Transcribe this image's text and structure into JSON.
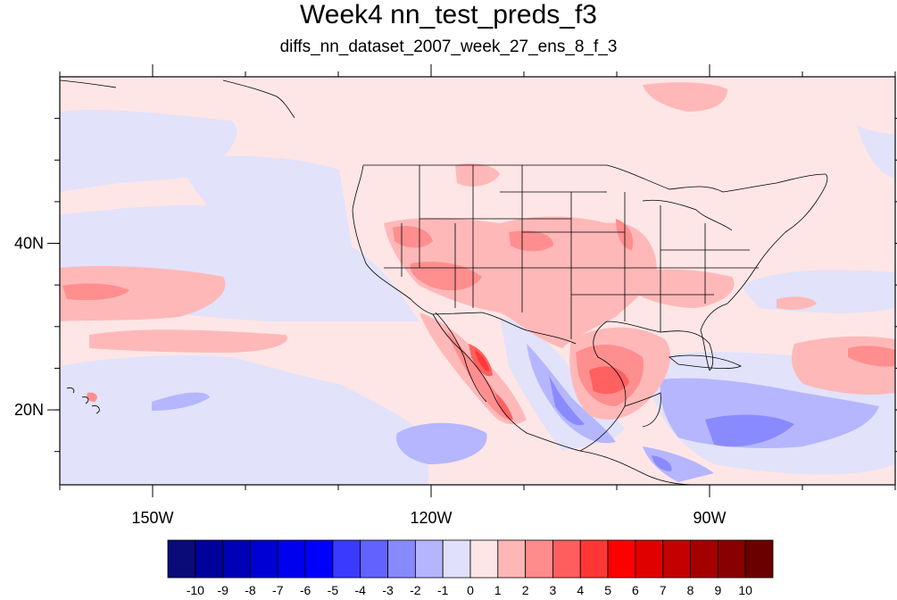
{
  "title": "Week4 nn_test_preds_f3",
  "subtitle": "diffs_nn_dataset_2007_week_27_ens_8_f_3",
  "map": {
    "lon_range": [
      -160,
      -70
    ],
    "lat_range": [
      11,
      60
    ],
    "lon_ticks": [
      {
        "value": -150,
        "label": "150W"
      },
      {
        "value": -120,
        "label": "120W"
      },
      {
        "value": -90,
        "label": "90W"
      }
    ],
    "lat_ticks": [
      {
        "value": 40,
        "label": "40N"
      },
      {
        "value": 20,
        "label": "20N"
      }
    ],
    "background_level": "0 to 1"
  },
  "colorbar": {
    "labels": [
      "-10",
      "-9",
      "-8",
      "-7",
      "-6",
      "-5",
      "-4",
      "-3",
      "-2",
      "-1",
      "0",
      "1",
      "2",
      "3",
      "4",
      "5",
      "6",
      "7",
      "8",
      "9",
      "10"
    ],
    "colors": [
      "#0a0a78",
      "#00009a",
      "#0000b8",
      "#0000d4",
      "#0000ee",
      "#0000ff",
      "#3a3aff",
      "#6262ff",
      "#8888ff",
      "#b4b4ff",
      "#e0e0fa",
      "#ffe6e6",
      "#ffb6b6",
      "#ff8c8c",
      "#ff5e5e",
      "#ff3636",
      "#ff0000",
      "#e00000",
      "#c40000",
      "#a40000",
      "#880000",
      "#6a0000"
    ]
  }
}
